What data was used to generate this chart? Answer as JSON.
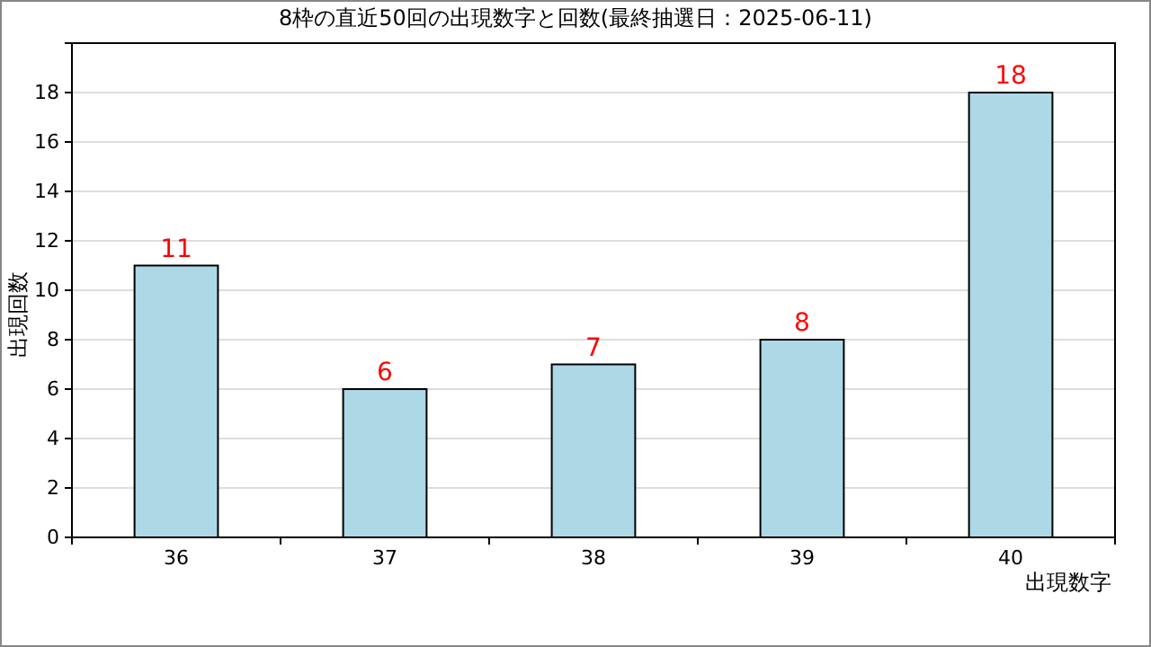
{
  "chart_data": {
    "type": "bar",
    "title": "8枠の直近50回の出現数字と回数(最終抽選日：2025-06-11)",
    "xlabel": "出現数字",
    "ylabel": "出現回数",
    "categories": [
      "36",
      "37",
      "38",
      "39",
      "40"
    ],
    "values": [
      11,
      6,
      7,
      8,
      18
    ],
    "color": "#add8e6",
    "ylim": [
      0,
      20
    ],
    "yticks": [
      0,
      2,
      4,
      6,
      8,
      10,
      12,
      14,
      16,
      18
    ],
    "grid": "y",
    "data_labels": true
  }
}
